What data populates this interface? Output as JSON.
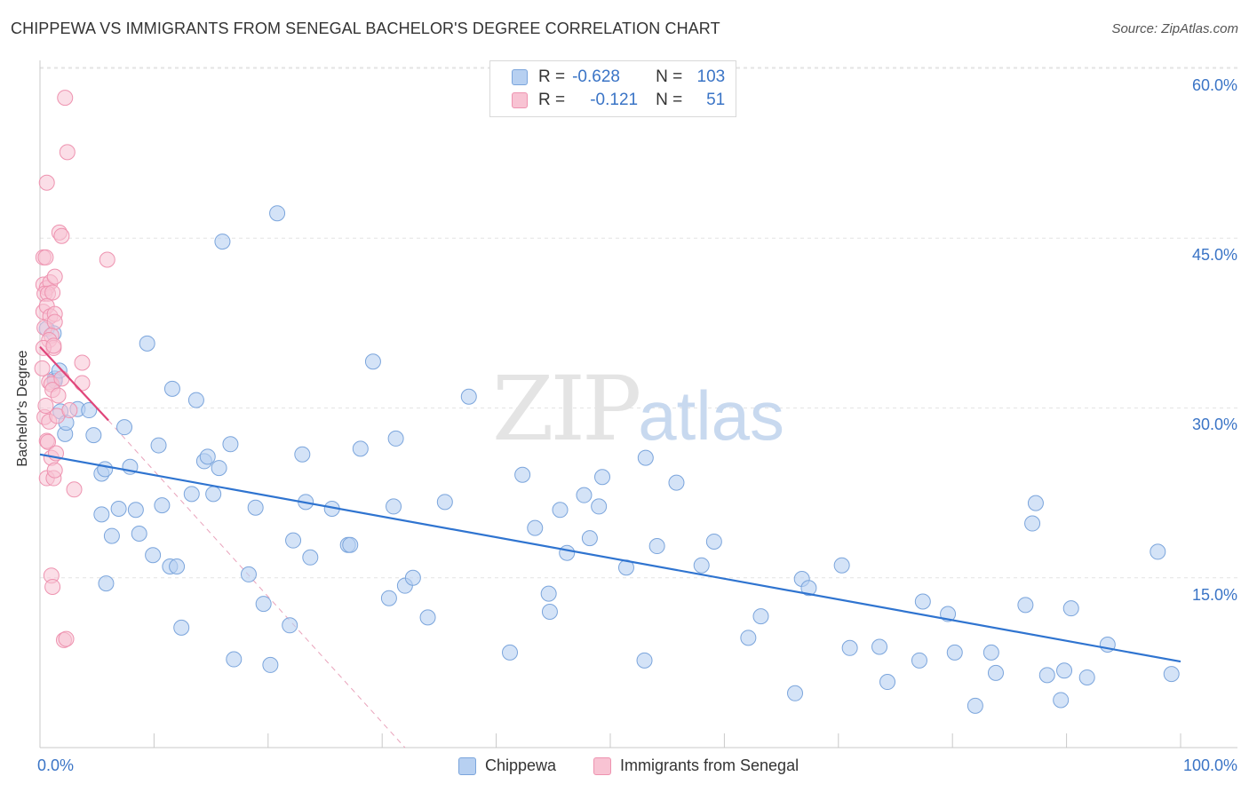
{
  "title": "CHIPPEWA VS IMMIGRANTS FROM SENEGAL BACHELOR'S DEGREE CORRELATION CHART",
  "source": "Source: ZipAtlas.com",
  "watermark": {
    "zip": "ZIP",
    "atlas": "atlas"
  },
  "legend": {
    "r_label": "R =",
    "n_label": "N =",
    "rows": [
      {
        "name": "Chippewa",
        "r": "-0.628",
        "n": "103"
      },
      {
        "name": "Immigrants from Senegal",
        "r": "-0.121",
        "n": "51"
      }
    ]
  },
  "chart_data": {
    "type": "scatter",
    "title": "CHIPPEWA VS IMMIGRANTS FROM SENEGAL BACHELOR'S DEGREE CORRELATION CHART",
    "xlabel": "",
    "ylabel": "Bachelor's Degree",
    "xlim": [
      0,
      100
    ],
    "ylim": [
      0,
      62
    ],
    "x_tick_labels": [
      "0.0%",
      "100.0%"
    ],
    "y_ticks": [
      15,
      30,
      45,
      60
    ],
    "y_tick_labels": [
      "15.0%",
      "30.0%",
      "45.0%",
      "60.0%"
    ],
    "grid": true,
    "colors": {
      "chippewa_fill": "#b7d0f1",
      "chippewa_edge": "#7ba5dc",
      "chippewa_line": "#2f74d0",
      "senegal_fill": "#f8c3d3",
      "senegal_edge": "#ee93b0",
      "senegal_line": "#e0457a",
      "axis_text": "#3a74c6",
      "grid": "#e3e3e3"
    },
    "series": [
      {
        "name": "Chippewa",
        "r": -0.628,
        "n": 103,
        "trend": {
          "x": [
            0,
            100
          ],
          "y": [
            25.9,
            7.6
          ]
        },
        "points": [
          [
            0.6,
            37.0
          ],
          [
            1.2,
            36.6
          ],
          [
            1.3,
            32.6
          ],
          [
            1.3,
            32.4
          ],
          [
            1.7,
            33.3
          ],
          [
            1.8,
            29.7
          ],
          [
            2.2,
            27.7
          ],
          [
            2.3,
            28.7
          ],
          [
            3.3,
            29.9
          ],
          [
            4.3,
            29.8
          ],
          [
            4.7,
            27.6
          ],
          [
            5.4,
            24.2
          ],
          [
            5.7,
            24.6
          ],
          [
            5.4,
            20.6
          ],
          [
            5.8,
            14.5
          ],
          [
            6.3,
            18.7
          ],
          [
            6.9,
            21.1
          ],
          [
            7.4,
            28.3
          ],
          [
            7.9,
            24.8
          ],
          [
            8.4,
            21.0
          ],
          [
            8.7,
            18.9
          ],
          [
            9.4,
            35.7
          ],
          [
            9.9,
            17.0
          ],
          [
            10.4,
            26.7
          ],
          [
            10.7,
            21.4
          ],
          [
            11.4,
            16.0
          ],
          [
            11.6,
            31.7
          ],
          [
            12.0,
            16.0
          ],
          [
            12.4,
            10.6
          ],
          [
            13.3,
            22.4
          ],
          [
            13.7,
            30.7
          ],
          [
            14.4,
            25.3
          ],
          [
            14.7,
            25.7
          ],
          [
            15.2,
            22.4
          ],
          [
            15.7,
            24.7
          ],
          [
            16.0,
            44.7
          ],
          [
            16.7,
            26.8
          ],
          [
            17.0,
            7.8
          ],
          [
            18.3,
            15.3
          ],
          [
            18.9,
            21.2
          ],
          [
            19.6,
            12.7
          ],
          [
            20.2,
            7.3
          ],
          [
            20.8,
            47.2
          ],
          [
            21.9,
            10.8
          ],
          [
            22.2,
            18.3
          ],
          [
            23.0,
            25.9
          ],
          [
            23.3,
            21.7
          ],
          [
            23.7,
            16.8
          ],
          [
            25.6,
            21.1
          ],
          [
            27.0,
            17.9
          ],
          [
            27.2,
            17.9
          ],
          [
            28.1,
            26.4
          ],
          [
            29.2,
            34.1
          ],
          [
            30.6,
            13.2
          ],
          [
            31.0,
            21.3
          ],
          [
            31.2,
            27.3
          ],
          [
            32.0,
            14.3
          ],
          [
            32.7,
            15.0
          ],
          [
            34.0,
            11.5
          ],
          [
            35.5,
            21.7
          ],
          [
            37.6,
            31.0
          ],
          [
            41.2,
            8.4
          ],
          [
            42.3,
            24.1
          ],
          [
            43.4,
            19.4
          ],
          [
            44.6,
            13.6
          ],
          [
            44.7,
            12.0
          ],
          [
            45.6,
            21.0
          ],
          [
            46.2,
            17.2
          ],
          [
            47.7,
            22.3
          ],
          [
            48.2,
            18.5
          ],
          [
            49.0,
            21.3
          ],
          [
            49.3,
            23.9
          ],
          [
            51.4,
            15.9
          ],
          [
            53.0,
            7.7
          ],
          [
            53.1,
            25.6
          ],
          [
            54.1,
            17.8
          ],
          [
            55.8,
            23.4
          ],
          [
            58.0,
            16.1
          ],
          [
            59.1,
            18.2
          ],
          [
            62.1,
            9.7
          ],
          [
            63.2,
            11.6
          ],
          [
            66.2,
            4.8
          ],
          [
            66.8,
            14.9
          ],
          [
            67.4,
            14.1
          ],
          [
            70.3,
            16.1
          ],
          [
            71.0,
            8.8
          ],
          [
            73.6,
            8.9
          ],
          [
            74.3,
            5.8
          ],
          [
            77.1,
            7.7
          ],
          [
            77.4,
            12.9
          ],
          [
            79.6,
            11.8
          ],
          [
            80.2,
            8.4
          ],
          [
            82.0,
            3.7
          ],
          [
            83.4,
            8.4
          ],
          [
            83.8,
            6.6
          ],
          [
            86.4,
            12.6
          ],
          [
            87.0,
            19.8
          ],
          [
            87.3,
            21.6
          ],
          [
            88.3,
            6.4
          ],
          [
            89.5,
            4.2
          ],
          [
            89.8,
            6.8
          ],
          [
            90.4,
            12.3
          ],
          [
            91.8,
            6.2
          ],
          [
            93.6,
            9.1
          ],
          [
            98.0,
            17.3
          ],
          [
            99.2,
            6.5
          ]
        ]
      },
      {
        "name": "Immigrants from Senegal",
        "r": -0.121,
        "n": 51,
        "trend": {
          "x": [
            0,
            6.0
          ],
          "y": [
            35.4,
            28.9
          ]
        },
        "trend_extension": {
          "x": [
            6.0,
            32.0
          ],
          "y": [
            28.9,
            0
          ]
        },
        "points": [
          [
            0.3,
            43.3
          ],
          [
            0.5,
            43.3
          ],
          [
            0.3,
            40.9
          ],
          [
            0.6,
            40.6
          ],
          [
            0.9,
            41.1
          ],
          [
            1.3,
            41.6
          ],
          [
            0.4,
            40.1
          ],
          [
            0.7,
            40.1
          ],
          [
            1.1,
            40.2
          ],
          [
            0.3,
            38.5
          ],
          [
            0.6,
            39.0
          ],
          [
            0.9,
            38.1
          ],
          [
            1.3,
            38.3
          ],
          [
            0.4,
            37.1
          ],
          [
            1.3,
            37.6
          ],
          [
            1.0,
            36.4
          ],
          [
            0.8,
            36.0
          ],
          [
            1.2,
            35.3
          ],
          [
            0.8,
            32.3
          ],
          [
            1.0,
            32.1
          ],
          [
            1.1,
            31.6
          ],
          [
            1.6,
            31.1
          ],
          [
            1.9,
            32.6
          ],
          [
            0.4,
            29.2
          ],
          [
            0.8,
            28.8
          ],
          [
            1.5,
            29.3
          ],
          [
            2.6,
            29.8
          ],
          [
            0.6,
            27.1
          ],
          [
            0.7,
            27.0
          ],
          [
            1.0,
            25.6
          ],
          [
            0.6,
            23.8
          ],
          [
            1.2,
            23.8
          ],
          [
            1.3,
            24.5
          ],
          [
            3.7,
            34.0
          ],
          [
            3.7,
            32.2
          ],
          [
            3.0,
            22.8
          ],
          [
            2.4,
            52.6
          ],
          [
            2.2,
            57.4
          ],
          [
            1.7,
            45.5
          ],
          [
            1.9,
            45.2
          ],
          [
            0.6,
            49.9
          ],
          [
            5.9,
            43.1
          ],
          [
            1.0,
            15.2
          ],
          [
            1.1,
            14.2
          ],
          [
            2.1,
            9.5
          ],
          [
            2.3,
            9.6
          ],
          [
            0.2,
            33.5
          ],
          [
            0.3,
            35.3
          ],
          [
            1.2,
            35.5
          ],
          [
            0.5,
            30.2
          ],
          [
            1.4,
            26.0
          ]
        ]
      }
    ]
  }
}
